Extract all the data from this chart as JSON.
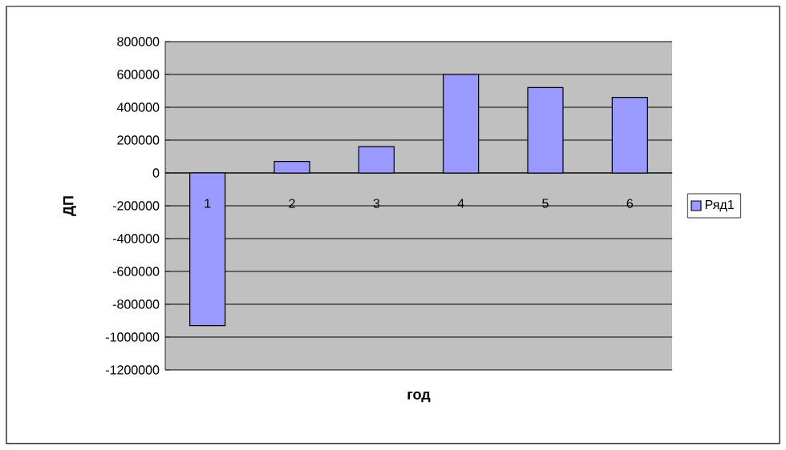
{
  "chart_data": {
    "type": "bar",
    "xlabel": "год",
    "ylabel": "ДП",
    "categories": [
      "1",
      "2",
      "3",
      "4",
      "5",
      "6"
    ],
    "series": [
      {
        "name": "Ряд1",
        "color": "#9999ff",
        "values": [
          -930000,
          70000,
          160000,
          600000,
          520000,
          460000
        ]
      }
    ],
    "ylim": [
      -1200000,
      800000
    ],
    "yticks": [
      -1200000,
      -1000000,
      -800000,
      -600000,
      -400000,
      -200000,
      0,
      200000,
      400000,
      600000,
      800000
    ],
    "grid": "y",
    "legend": "right"
  }
}
